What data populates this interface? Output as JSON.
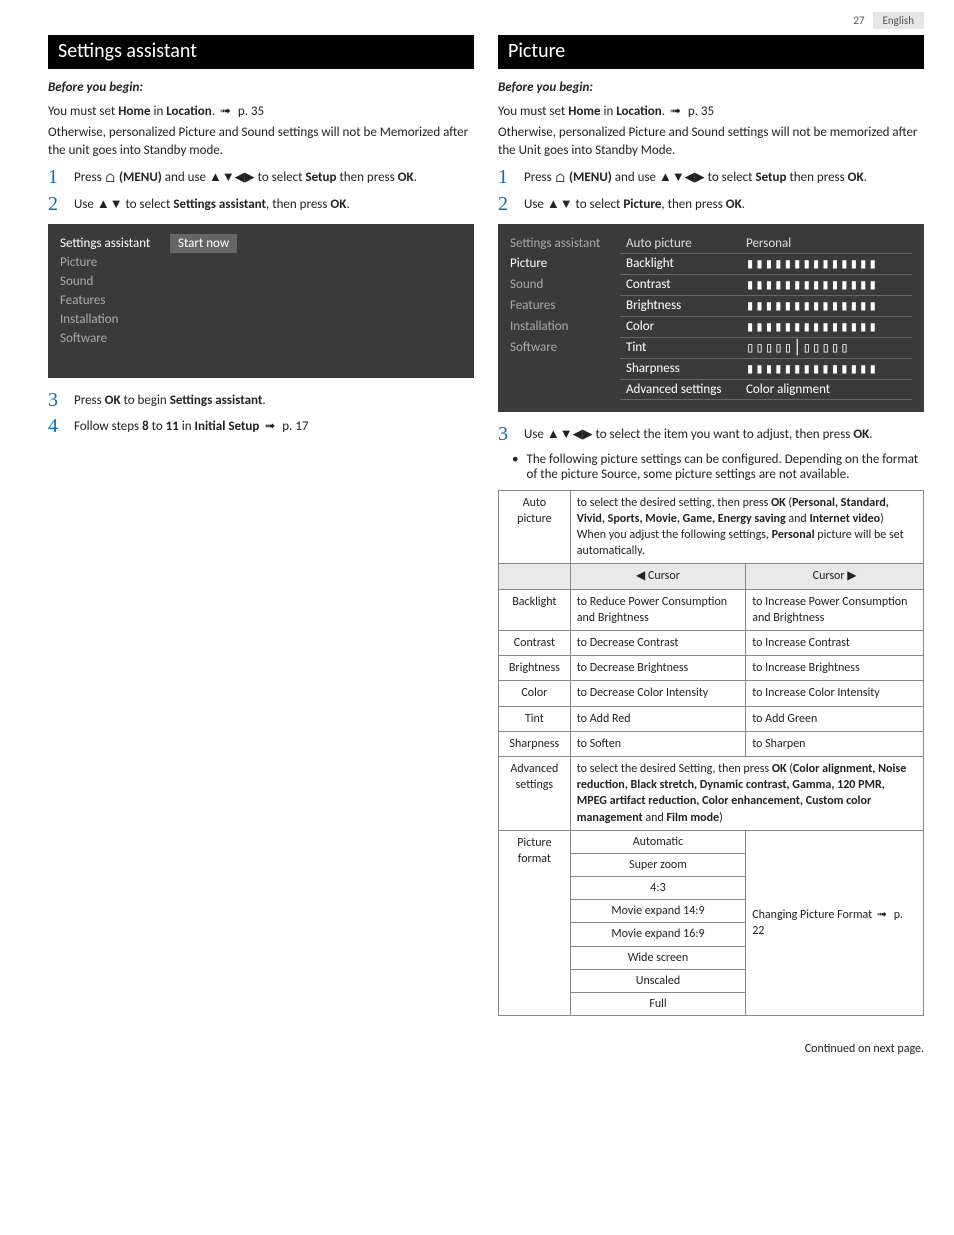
{
  "page": {
    "number": "27",
    "lang": "English",
    "footer": "Continued on next page."
  },
  "left": {
    "title": "Settings assistant",
    "before": "Before you begin:",
    "must_set_pre": "You must set ",
    "home": "Home",
    "in": " in ",
    "location": "Location",
    "period_ref": ".  ",
    "page_ref": "p. 35",
    "otherwise": "Otherwise, personalized Picture and Sound settings will not be Memorized after the unit goes into Standby mode.",
    "step1_pre": "Press ",
    "menu_label": "(MENU)",
    "step1_mid": " and use ",
    "step1_post": " to select ",
    "setup": "Setup",
    "then_press": " then press ",
    "ok": "OK",
    "step1_end": ".",
    "step2_pre": "Use ",
    "step2_mid": " to select ",
    "settings_assistant": "Settings assistant",
    "step2_post": ", then press ",
    "step2_end": ".",
    "step3_pre": "Press ",
    "step3_mid": " to begin ",
    "step3_end": ".",
    "step4_pre": "Follow steps ",
    "eight": "8",
    "to": " to ",
    "eleven": "11",
    "in_initial": " in ",
    "initial_setup": "Initial Setup",
    "step4_ref": "p. 17",
    "menu": {
      "label": "Settings assistant",
      "start_now": "Start now",
      "items": [
        "Picture",
        "Sound",
        "Features",
        "Installation",
        "Software"
      ]
    }
  },
  "right": {
    "title": "Picture",
    "before": "Before you begin:",
    "must_set_pre": "You must set ",
    "home": "Home",
    "in": " in ",
    "location": "Location",
    "period_ref": ".  ",
    "page_ref": "p. 35",
    "otherwise": "Otherwise, personalized Picture and Sound settings will not be memorized after the Unit goes into Standby Mode.",
    "step1_pre": "Press ",
    "menu_label": "(MENU)",
    "step1_mid": " and use ",
    "step1_post": " to select ",
    "setup": "Setup",
    "then_press": " then press ",
    "ok": "OK",
    "step1_end": ".",
    "step2_pre": "Use ",
    "step2_mid": " to select ",
    "picture": "Picture",
    "step2_post": ", then press ",
    "step2_end": ".",
    "step3_pre": "Use ",
    "step3_mid": " to select the item you want to adjust, then press ",
    "step3_end": ".",
    "note": "The following picture settings can be configured. Depending on the format of the picture Source, some picture settings are not available.",
    "menu": {
      "label": "Settings assistant",
      "col2_header": "Auto picture",
      "col3_header": "Personal",
      "sidebar": [
        "Picture",
        "Sound",
        "Features",
        "Installation",
        "Software"
      ],
      "rows": [
        {
          "l": "Backlight",
          "r": "ticks"
        },
        {
          "l": "Contrast",
          "r": "ticks"
        },
        {
          "l": "Brightness",
          "r": "ticks"
        },
        {
          "l": "Color",
          "r": "ticks"
        },
        {
          "l": "Tint",
          "r": "tint"
        },
        {
          "l": "Sharpness",
          "r": "ticks"
        },
        {
          "l": "Advanced settings",
          "r": "Color alignment"
        }
      ]
    },
    "table": {
      "auto_picture": {
        "label": "Auto picture",
        "pre": "to select the desired setting, then press ",
        "ok": "OK",
        "list_open": " (",
        "opts": "Personal, Standard, Vivid, Sports, Movie, Game, Energy saving",
        "and": " and ",
        "last": "Internet video",
        "list_close": ")",
        "post_pre": "When you adjust the following settings, ",
        "personal": "Personal",
        "post_end": " picture will be set automatically."
      },
      "cursor_left": "Cursor",
      "cursor_right": "Cursor",
      "rows": [
        {
          "label": "Backlight",
          "l": "to Reduce Power Consumption and Brightness",
          "r": "to Increase Power Consumption and Brightness"
        },
        {
          "label": "Contrast",
          "l": "to Decrease Contrast",
          "r": "to Increase Contrast"
        },
        {
          "label": "Brightness",
          "l": "to Decrease Brightness",
          "r": "to Increase Brightness"
        },
        {
          "label": "Color",
          "l": "to Decrease Color Intensity",
          "r": "to Increase Color Intensity"
        },
        {
          "label": "Tint",
          "l": "to Add Red",
          "r": "to Add Green"
        },
        {
          "label": "Sharpness",
          "l": "to Soften",
          "r": "to Sharpen"
        }
      ],
      "advanced": {
        "label": "Advanced settings",
        "pre": "to select the desired Setting, then press ",
        "ok": "OK",
        "list_open": " (",
        "opts": "Color alignment, Noise reduction, Black stretch, Dynamic contrast, Gamma, 120 PMR, MPEG artifact reduction, Color enhancement, Custom color management",
        "and": " and ",
        "last": "Film mode",
        "list_close": ")"
      },
      "picture_format": {
        "label": "Picture format",
        "options": [
          "Automatic",
          "Super zoom",
          "4:3",
          "Movie expand 14:9",
          "Movie expand 16:9",
          "Wide screen",
          "Unscaled",
          "Full"
        ],
        "ref_pre": "Changing Picture Format ",
        "ref": "p. 22"
      }
    }
  }
}
